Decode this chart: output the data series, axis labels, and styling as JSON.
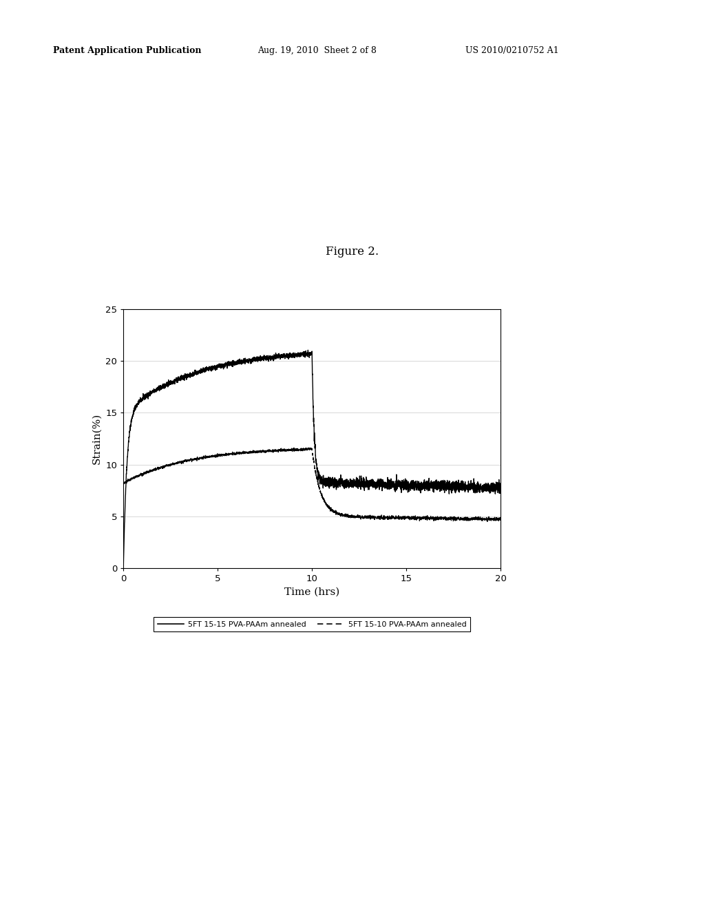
{
  "title": "Figure 2.",
  "title_fontsize": 12,
  "xlabel": "Time (hrs)",
  "ylabel": "Strain(%)",
  "xlabel_fontsize": 11,
  "ylabel_fontsize": 11,
  "xlim": [
    0,
    20
  ],
  "ylim": [
    0,
    25
  ],
  "xticks": [
    0,
    5,
    10,
    15,
    20
  ],
  "yticks": [
    0,
    5,
    10,
    15,
    20,
    25
  ],
  "background_color": "#ffffff",
  "header_left": "Patent Application Publication",
  "header_mid": "Aug. 19, 2010  Sheet 2 of 8",
  "header_right": "US 2010/0210752 A1",
  "legend1_label": "5FT 15-15 PVA-PAAm annealed",
  "legend2_label": "5FT 15-10 PVA-PAAm annealed",
  "solid_color": "#000000",
  "dashed_color": "#000000",
  "grid_color": "#c8c8c8",
  "noise_scale_solid_load": 0.12,
  "noise_scale_solid_unload": 0.25,
  "noise_scale_dashed_load": 0.06,
  "noise_scale_dashed_unload": 0.08
}
